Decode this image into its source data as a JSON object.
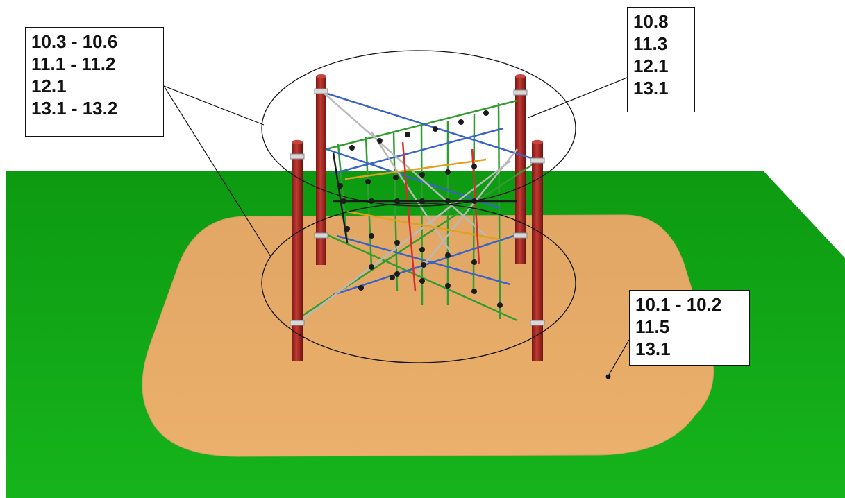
{
  "colors": {
    "grass": "#13a519",
    "grass_dark": "#0f8a13",
    "sand": "#e8ae6a",
    "post": "#a8241f",
    "net_green": "#2f9e2f",
    "net_blue": "#3a63c7",
    "net_grey": "#b9b9b9",
    "net_orange": "#e0a020",
    "net_red": "#d23030",
    "net_black": "#1c1c1c"
  },
  "callouts": [
    {
      "name": "callout-upper-left",
      "lines": [
        "10.3 - 10.6",
        "11.1 - 11.2",
        "12.1",
        "13.1 - 13.2"
      ]
    },
    {
      "name": "callout-upper-right",
      "lines": [
        "10.8",
        "11.3",
        "12.1",
        "13.1"
      ]
    },
    {
      "name": "callout-surface",
      "lines": [
        "10.1 - 10.2",
        "11.5",
        "13.1"
      ]
    }
  ]
}
